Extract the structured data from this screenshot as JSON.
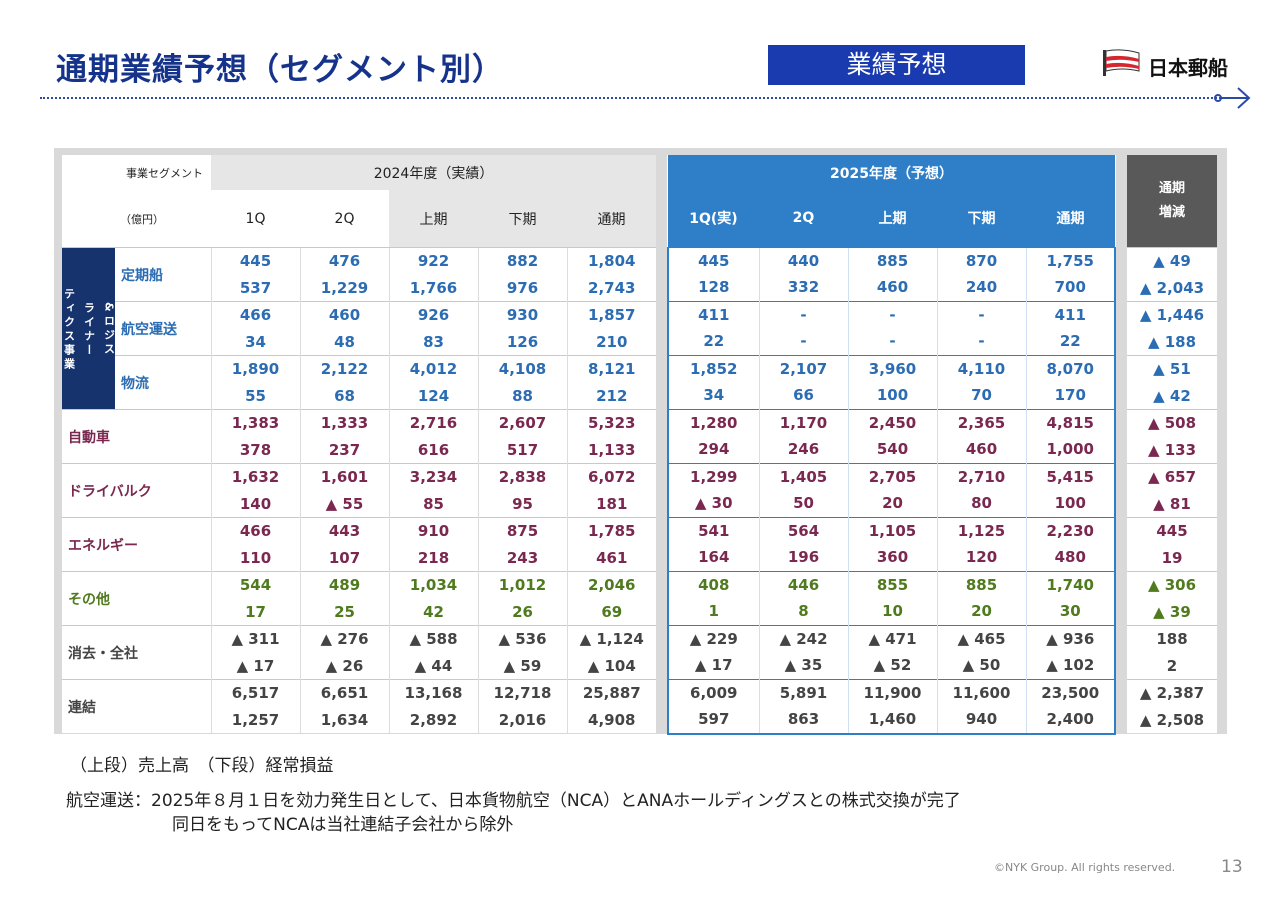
{
  "header": {
    "title": "通期業績予想（セグメント別）",
    "badge": "業績予想",
    "logo_text": "日本郵船"
  },
  "table": {
    "segment_label": "事業セグメント",
    "unit_label": "（億円）",
    "fy2024_label": "2024年度（実績）",
    "fy2025_label": "2025年度（予想）",
    "diff_label_line1": "通期",
    "diff_label_line2": "増減",
    "cols_2024": [
      "1Q",
      "2Q",
      "上期",
      "下期",
      "通期"
    ],
    "cols_2025": [
      "1Q(実)",
      "2Q",
      "上期",
      "下期",
      "通期"
    ],
    "liner_group_label": "ライナー&ロジスティクス事業",
    "liner_group_col1": "ティクス事業",
    "liner_group_col2": "ライナー",
    "liner_group_col3": "&ロジス",
    "rows": [
      {
        "name": "定期船",
        "rev": [
          "445",
          "476",
          "922",
          "882",
          "1,804",
          "445",
          "440",
          "885",
          "870",
          "1,755",
          "▲ 49"
        ],
        "prof": [
          "537",
          "1,229",
          "1,766",
          "976",
          "2,743",
          "128",
          "332",
          "460",
          "240",
          "700",
          "▲ 2,043"
        ]
      },
      {
        "name": "航空運送",
        "rev": [
          "466",
          "460",
          "926",
          "930",
          "1,857",
          "411",
          "-",
          "-",
          "-",
          "411",
          "▲ 1,446"
        ],
        "prof": [
          "34",
          "48",
          "83",
          "126",
          "210",
          "22",
          "-",
          "-",
          "-",
          "22",
          "▲ 188"
        ]
      },
      {
        "name": "物流",
        "rev": [
          "1,890",
          "2,122",
          "4,012",
          "4,108",
          "8,121",
          "1,852",
          "2,107",
          "3,960",
          "4,110",
          "8,070",
          "▲ 51"
        ],
        "prof": [
          "55",
          "68",
          "124",
          "88",
          "212",
          "34",
          "66",
          "100",
          "70",
          "170",
          "▲ 42"
        ]
      },
      {
        "name": "自動車",
        "rev": [
          "1,383",
          "1,333",
          "2,716",
          "2,607",
          "5,323",
          "1,280",
          "1,170",
          "2,450",
          "2,365",
          "4,815",
          "▲ 508"
        ],
        "prof": [
          "378",
          "237",
          "616",
          "517",
          "1,133",
          "294",
          "246",
          "540",
          "460",
          "1,000",
          "▲ 133"
        ]
      },
      {
        "name": "ドライバルク",
        "rev": [
          "1,632",
          "1,601",
          "3,234",
          "2,838",
          "6,072",
          "1,299",
          "1,405",
          "2,705",
          "2,710",
          "5,415",
          "▲ 657"
        ],
        "prof": [
          "140",
          "▲ 55",
          "85",
          "95",
          "181",
          "▲ 30",
          "50",
          "20",
          "80",
          "100",
          "▲ 81"
        ]
      },
      {
        "name": "エネルギー",
        "rev": [
          "466",
          "443",
          "910",
          "875",
          "1,785",
          "541",
          "564",
          "1,105",
          "1,125",
          "2,230",
          "445"
        ],
        "prof": [
          "110",
          "107",
          "218",
          "243",
          "461",
          "164",
          "196",
          "360",
          "120",
          "480",
          "19"
        ]
      },
      {
        "name": "その他",
        "rev": [
          "544",
          "489",
          "1,034",
          "1,012",
          "2,046",
          "408",
          "446",
          "855",
          "885",
          "1,740",
          "▲ 306"
        ],
        "prof": [
          "17",
          "25",
          "42",
          "26",
          "69",
          "1",
          "8",
          "10",
          "20",
          "30",
          "▲ 39"
        ]
      },
      {
        "name": "消去・全社",
        "rev": [
          "▲ 311",
          "▲ 276",
          "▲ 588",
          "▲ 536",
          "▲ 1,124",
          "▲ 229",
          "▲ 242",
          "▲ 471",
          "▲ 465",
          "▲ 936",
          "188"
        ],
        "prof": [
          "▲ 17",
          "▲ 26",
          "▲ 44",
          "▲ 59",
          "▲ 104",
          "▲ 17",
          "▲ 35",
          "▲ 52",
          "▲ 50",
          "▲ 102",
          "2"
        ]
      },
      {
        "name": "連結",
        "rev": [
          "6,517",
          "6,651",
          "13,168",
          "12,718",
          "25,887",
          "6,009",
          "5,891",
          "11,900",
          "11,600",
          "23,500",
          "▲ 2,387"
        ],
        "prof": [
          "1,257",
          "1,634",
          "2,892",
          "2,016",
          "4,908",
          "597",
          "863",
          "1,460",
          "940",
          "2,400",
          "▲ 2,508"
        ]
      }
    ]
  },
  "notes": {
    "line1": "（上段）売上高　（下段）経常損益",
    "line2": "航空運送：2025年８月１日を効力発生日として、日本貨物航空（NCA）とANAホールディングスとの株式交換が完了",
    "line3": "同日をもってNCAは当社連結子会社から除外"
  },
  "footer": {
    "copyright": "©NYK Group. All rights reserved.",
    "page": "13"
  },
  "colors": {
    "title": "#16338c",
    "badge_bg": "#1a3bb0",
    "fy2025_header": "#2e7ec8",
    "diff_header": "#595959",
    "liner_text": "#2b6cb3",
    "mid_text": "#7a2850",
    "other_text": "#4f7a1d",
    "group_bg": "#16336e",
    "logo_red": "#d6262e"
  }
}
